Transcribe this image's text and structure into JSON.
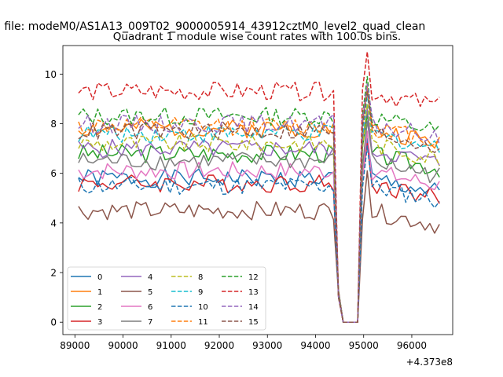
{
  "chart_data": {
    "type": "line",
    "suptitle": "n file: modeM0/AS1A13_009T02_9000005914_43912cztM0_level2_quad_clean",
    "title": "Quadrant 1 module wise count rates with 100.0s bins.",
    "xlabel": "",
    "ylabel": "",
    "x_offset_label": "+4.373e8",
    "xlim": [
      88750,
      96850
    ],
    "ylim": [
      -0.5,
      11.15
    ],
    "xticks": [
      89000,
      90000,
      91000,
      92000,
      93000,
      94000,
      95000,
      96000
    ],
    "yticks": [
      0,
      2,
      4,
      6,
      8,
      10
    ],
    "x_start": 89075,
    "x_end": 96575,
    "x_step": 100,
    "legend_position": "lower left",
    "legend_columns": 4,
    "series": [
      {
        "name": "0",
        "color": "#1f77b4",
        "dash": "solid",
        "level": 5.8
      },
      {
        "name": "1",
        "color": "#ff7f0e",
        "dash": "solid",
        "level": 7.8
      },
      {
        "name": "2",
        "color": "#2ca02c",
        "dash": "solid",
        "level": 6.8
      },
      {
        "name": "3",
        "color": "#d62728",
        "dash": "solid",
        "level": 5.6
      },
      {
        "name": "4",
        "color": "#9467bd",
        "dash": "solid",
        "level": 7.0
      },
      {
        "name": "5",
        "color": "#8c564b",
        "dash": "solid",
        "level": 4.5
      },
      {
        "name": "6",
        "color": "#e377c2",
        "dash": "solid",
        "level": 6.1
      },
      {
        "name": "7",
        "color": "#7f7f7f",
        "dash": "solid",
        "level": 6.5
      },
      {
        "name": "8",
        "color": "#bcbd22",
        "dash": "dashed",
        "level": 7.2
      },
      {
        "name": "9",
        "color": "#17becf",
        "dash": "dashed",
        "level": 7.6
      },
      {
        "name": "10",
        "color": "#1f77b4",
        "dash": "dashed",
        "level": 5.5
      },
      {
        "name": "11",
        "color": "#ff7f0e",
        "dash": "dashed",
        "level": 7.9
      },
      {
        "name": "12",
        "color": "#2ca02c",
        "dash": "dashed",
        "level": 8.3
      },
      {
        "name": "13",
        "color": "#d62728",
        "dash": "dashed",
        "level": 9.3
      },
      {
        "name": "14",
        "color": "#9467bd",
        "dash": "dashed",
        "level": 8.0
      },
      {
        "name": "15",
        "color": "#8c564b",
        "dash": "dashed",
        "level": 7.7
      }
    ],
    "gap": {
      "x": [
        94575,
        94675,
        94775,
        94875
      ],
      "value": 0.0
    },
    "peak": {
      "x": 95075,
      "bump": 1.6
    }
  }
}
